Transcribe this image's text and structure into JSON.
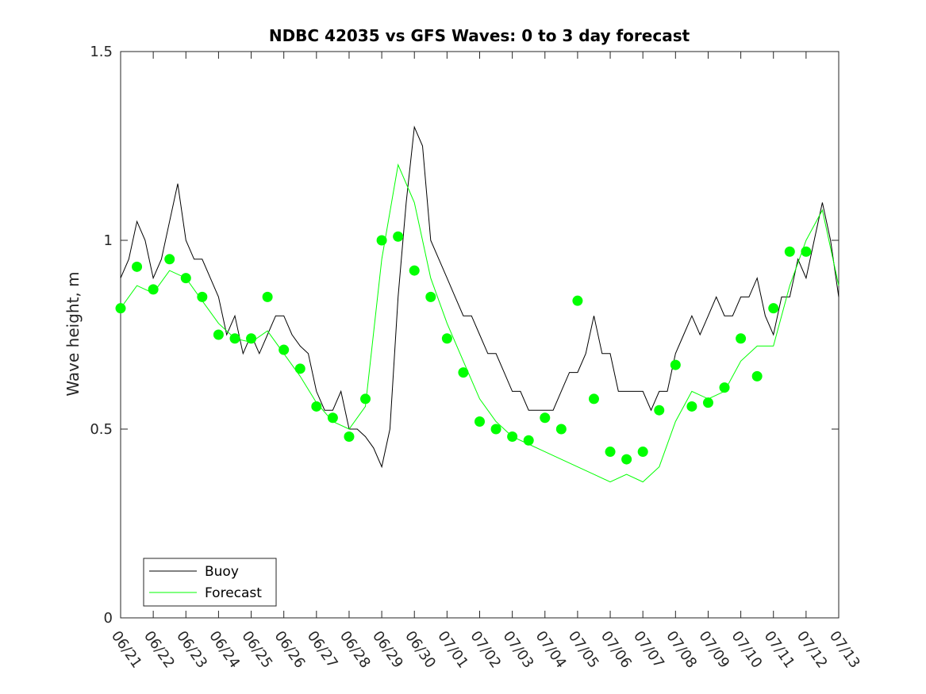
{
  "chart_data": {
    "type": "line",
    "title": "NDBC 42035 vs GFS Waves: 0 to 3 day forecast",
    "xlabel": "",
    "ylabel": "Wave height, m",
    "xlim": [
      "06/21",
      "07/13"
    ],
    "ylim": [
      0,
      1.5
    ],
    "x_tick_labels": [
      "06/21",
      "06/22",
      "06/23",
      "06/24",
      "06/25",
      "06/26",
      "06/27",
      "06/28",
      "06/29",
      "06/30",
      "07/01",
      "07/02",
      "07/03",
      "07/04",
      "07/05",
      "07/06",
      "07/07",
      "07/08",
      "07/09",
      "07/10",
      "07/11",
      "07/12",
      "07/13"
    ],
    "y_ticks": [
      0,
      0.5,
      1,
      1.5
    ],
    "y_tick_labels": [
      "0",
      "0.5",
      "1",
      "1.5"
    ],
    "grid": false,
    "legend_position": "bottom-left",
    "legend": [
      "Buoy",
      "Forecast"
    ],
    "colors": {
      "buoy": "#000000",
      "forecast": "#00ff00"
    },
    "series": [
      {
        "name": "Buoy",
        "style": "line",
        "x": [
          "06/21 00:00",
          "06/21 06:00",
          "06/21 12:00",
          "06/21 18:00",
          "06/22 00:00",
          "06/22 06:00",
          "06/22 12:00",
          "06/22 18:00",
          "06/23 00:00",
          "06/23 06:00",
          "06/23 12:00",
          "06/23 18:00",
          "06/24 00:00",
          "06/24 06:00",
          "06/24 12:00",
          "06/24 18:00",
          "06/25 00:00",
          "06/25 06:00",
          "06/25 12:00",
          "06/25 18:00",
          "06/26 00:00",
          "06/26 06:00",
          "06/26 12:00",
          "06/26 18:00",
          "06/27 00:00",
          "06/27 06:00",
          "06/27 12:00",
          "06/27 18:00",
          "06/28 00:00",
          "06/28 06:00",
          "06/28 12:00",
          "06/28 18:00",
          "06/29 00:00",
          "06/29 06:00",
          "06/29 12:00",
          "06/29 18:00",
          "06/30 00:00",
          "06/30 06:00",
          "06/30 12:00",
          "06/30 18:00",
          "07/01 00:00",
          "07/01 06:00",
          "07/01 12:00",
          "07/01 18:00",
          "07/02 00:00",
          "07/02 06:00",
          "07/02 12:00",
          "07/02 18:00",
          "07/03 00:00",
          "07/03 06:00",
          "07/03 12:00",
          "07/03 18:00",
          "07/04 00:00",
          "07/04 06:00",
          "07/04 12:00",
          "07/04 18:00",
          "07/05 00:00",
          "07/05 06:00",
          "07/05 12:00",
          "07/05 18:00",
          "07/06 00:00",
          "07/06 06:00",
          "07/06 12:00",
          "07/06 18:00",
          "07/07 00:00",
          "07/07 06:00",
          "07/07 12:00",
          "07/07 18:00",
          "07/08 00:00",
          "07/08 06:00",
          "07/08 12:00",
          "07/08 18:00",
          "07/09 00:00",
          "07/09 06:00",
          "07/09 12:00",
          "07/09 18:00",
          "07/10 00:00",
          "07/10 06:00",
          "07/10 12:00",
          "07/10 18:00",
          "07/11 00:00",
          "07/11 06:00",
          "07/11 12:00",
          "07/11 18:00",
          "07/12 00:00",
          "07/12 06:00",
          "07/12 12:00",
          "07/12 18:00",
          "07/13 00:00"
        ],
        "y": [
          0.9,
          0.95,
          1.05,
          1.0,
          0.9,
          0.95,
          1.05,
          1.15,
          1.0,
          0.95,
          0.95,
          0.9,
          0.85,
          0.75,
          0.8,
          0.7,
          0.75,
          0.7,
          0.75,
          0.8,
          0.8,
          0.75,
          0.72,
          0.7,
          0.6,
          0.55,
          0.55,
          0.6,
          0.5,
          0.5,
          0.48,
          0.45,
          0.4,
          0.5,
          0.85,
          1.1,
          1.3,
          1.25,
          1.0,
          0.95,
          0.9,
          0.85,
          0.8,
          0.8,
          0.75,
          0.7,
          0.7,
          0.65,
          0.6,
          0.6,
          0.55,
          0.55,
          0.55,
          0.55,
          0.6,
          0.65,
          0.65,
          0.7,
          0.8,
          0.7,
          0.7,
          0.6,
          0.6,
          0.6,
          0.6,
          0.55,
          0.6,
          0.6,
          0.7,
          0.75,
          0.8,
          0.75,
          0.8,
          0.85,
          0.8,
          0.8,
          0.85,
          0.85,
          0.9,
          0.8,
          0.75,
          0.85,
          0.85,
          0.95,
          0.9,
          1.0,
          1.1,
          1.0,
          0.85
        ]
      },
      {
        "name": "Forecast",
        "style": "markers",
        "x": [
          "06/21 00:00",
          "06/21 12:00",
          "06/22 00:00",
          "06/22 12:00",
          "06/23 00:00",
          "06/23 12:00",
          "06/24 00:00",
          "06/24 12:00",
          "06/25 00:00",
          "06/25 12:00",
          "06/26 00:00",
          "06/26 12:00",
          "06/27 00:00",
          "06/27 12:00",
          "06/28 00:00",
          "06/28 12:00",
          "06/29 00:00",
          "06/29 12:00",
          "06/30 00:00",
          "06/30 12:00",
          "07/01 00:00",
          "07/01 12:00",
          "07/02 00:00",
          "07/02 12:00",
          "07/03 00:00",
          "07/03 12:00",
          "07/04 00:00",
          "07/04 12:00",
          "07/05 00:00",
          "07/05 12:00",
          "07/06 00:00",
          "07/06 12:00",
          "07/07 00:00",
          "07/07 12:00",
          "07/08 00:00",
          "07/08 12:00",
          "07/09 00:00",
          "07/09 12:00",
          "07/10 00:00",
          "07/10 12:00",
          "07/11 00:00",
          "07/11 12:00",
          "07/12 00:00"
        ],
        "y": [
          0.82,
          0.93,
          0.87,
          0.95,
          0.9,
          0.85,
          0.75,
          0.74,
          0.74,
          0.85,
          0.71,
          0.66,
          0.56,
          0.53,
          0.48,
          0.58,
          1.0,
          1.01,
          0.92,
          0.85,
          0.74,
          0.65,
          0.52,
          0.5,
          0.48,
          0.47,
          0.53,
          0.5,
          0.84,
          0.58,
          0.44,
          0.42,
          0.44,
          0.55,
          0.67,
          0.56,
          0.57,
          0.61,
          0.74,
          0.64,
          0.82,
          0.97,
          0.97
        ]
      },
      {
        "name": "",
        "style": "forecast-lines",
        "x": [
          "06/21 00:00",
          "06/21 12:00",
          "06/22 00:00",
          "06/22 12:00",
          "06/23 00:00",
          "06/23 12:00",
          "06/24 00:00",
          "06/24 12:00",
          "06/25 00:00",
          "06/25 12:00",
          "06/26 00:00",
          "06/26 12:00",
          "06/27 00:00",
          "06/27 12:00",
          "06/28 00:00",
          "06/28 12:00",
          "06/29 00:00",
          "06/29 12:00",
          "06/30 00:00",
          "06/30 12:00",
          "07/01 00:00",
          "07/01 12:00",
          "07/02 00:00",
          "07/02 12:00",
          "07/03 00:00",
          "07/03 12:00",
          "07/04 00:00",
          "07/04 12:00",
          "07/05 00:00",
          "07/05 12:00",
          "07/06 00:00",
          "07/06 12:00",
          "07/07 00:00",
          "07/07 12:00",
          "07/08 00:00",
          "07/08 12:00",
          "07/09 00:00",
          "07/09 12:00",
          "07/10 00:00",
          "07/10 12:00",
          "07/11 00:00",
          "07/11 12:00",
          "07/12 00:00",
          "07/12 12:00",
          "07/13 00:00"
        ],
        "y": [
          0.82,
          0.88,
          0.86,
          0.92,
          0.9,
          0.84,
          0.78,
          0.74,
          0.73,
          0.76,
          0.7,
          0.64,
          0.57,
          0.52,
          0.5,
          0.56,
          0.95,
          1.2,
          1.1,
          0.9,
          0.78,
          0.68,
          0.58,
          0.52,
          0.48,
          0.46,
          0.44,
          0.42,
          0.4,
          0.38,
          0.36,
          0.38,
          0.36,
          0.4,
          0.52,
          0.6,
          0.58,
          0.6,
          0.68,
          0.72,
          0.72,
          0.88,
          1.0,
          1.08,
          0.88
        ]
      }
    ]
  }
}
